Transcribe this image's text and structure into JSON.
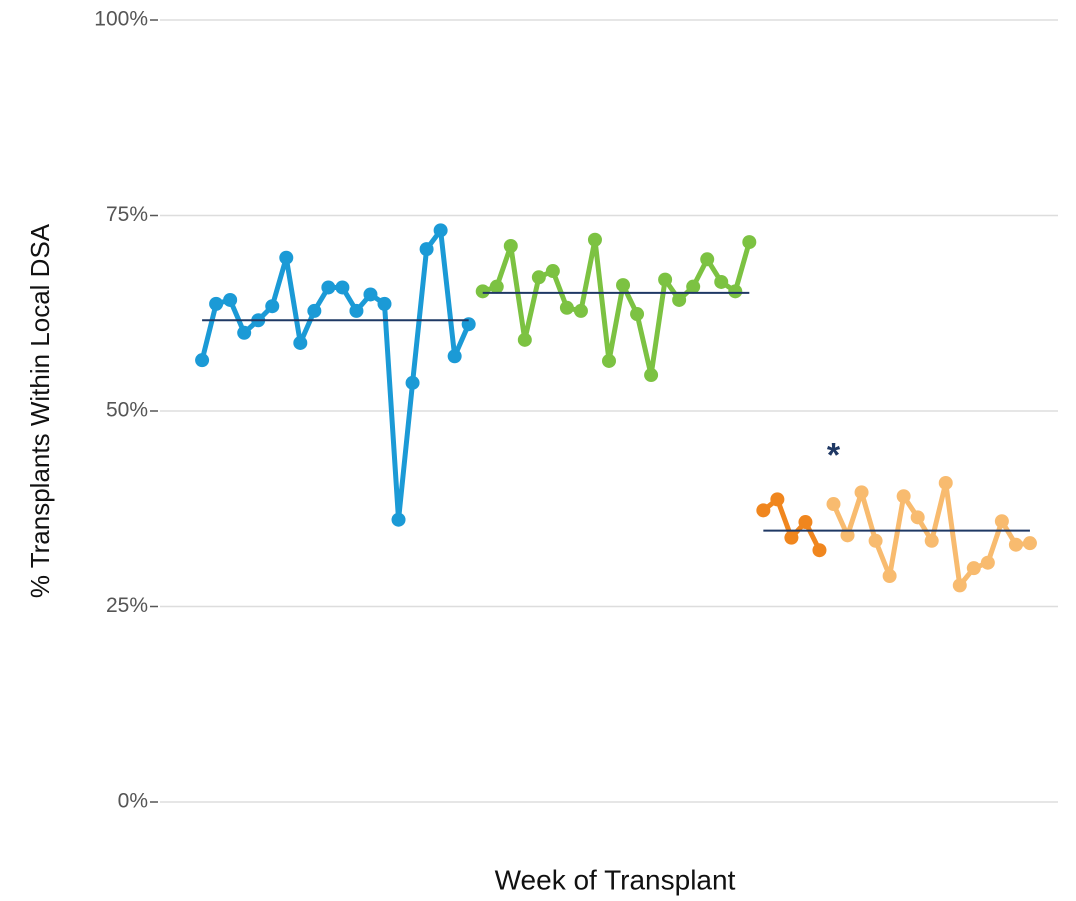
{
  "chart_data": {
    "type": "line",
    "ylabel": "% Transplants Within Local DSA",
    "xlabel": "Week of Transplant",
    "categories": [
      null,
      null,
      null,
      null,
      null,
      null,
      null,
      null,
      null,
      null,
      null,
      null,
      null,
      null,
      null,
      null,
      null,
      null,
      null,
      null,
      null,
      null,
      null,
      null,
      null,
      null,
      null,
      null,
      null,
      null,
      null,
      null,
      null,
      null,
      null,
      null,
      null,
      null,
      null,
      null,
      null,
      null,
      null,
      null,
      null,
      null,
      null,
      null,
      null,
      null,
      null,
      null,
      null,
      null,
      null,
      null,
      null,
      null,
      null,
      null
    ],
    "series": [
      {
        "color": "#1b9ad6",
        "values": [
          56.5,
          63.7,
          64.2,
          60.0,
          61.6,
          63.4,
          69.6,
          58.7,
          62.8,
          65.8,
          65.8,
          62.8,
          64.9,
          63.7,
          36.1,
          53.6,
          70.7,
          73.1,
          57.0,
          61.1,
          null,
          null,
          null,
          null,
          null,
          null,
          null,
          null,
          null,
          null,
          null,
          null,
          null,
          null,
          null,
          null,
          null,
          null,
          null,
          null,
          null,
          null,
          null,
          null,
          null,
          null,
          null,
          null,
          null,
          null,
          null,
          null,
          null,
          null,
          null,
          null,
          null,
          null,
          null,
          null
        ]
      },
      {
        "color": "#7cc242",
        "values": [
          null,
          null,
          null,
          null,
          null,
          null,
          null,
          null,
          null,
          null,
          null,
          null,
          null,
          null,
          null,
          null,
          null,
          null,
          null,
          null,
          65.3,
          65.9,
          71.1,
          59.1,
          67.1,
          67.9,
          63.2,
          62.8,
          71.9,
          56.4,
          66.1,
          62.4,
          54.6,
          66.8,
          64.2,
          65.9,
          69.4,
          66.5,
          65.3,
          71.6,
          null,
          null,
          null,
          null,
          null,
          null,
          null,
          null,
          null,
          null,
          null,
          null,
          null,
          null,
          null,
          null,
          null,
          null,
          null,
          null
        ]
      },
      {
        "color": "#f0861e",
        "values": [
          null,
          null,
          null,
          null,
          null,
          null,
          null,
          null,
          null,
          null,
          null,
          null,
          null,
          null,
          null,
          null,
          null,
          null,
          null,
          null,
          null,
          null,
          null,
          null,
          null,
          null,
          null,
          null,
          null,
          null,
          null,
          null,
          null,
          null,
          null,
          null,
          null,
          null,
          null,
          null,
          37.3,
          38.7,
          33.8,
          35.8,
          32.2,
          null,
          null,
          null,
          null,
          null,
          null,
          null,
          null,
          null,
          null,
          null,
          null,
          null,
          null,
          null
        ]
      },
      {
        "color": "#f8bb6f",
        "values": [
          null,
          null,
          null,
          null,
          null,
          null,
          null,
          null,
          null,
          null,
          null,
          null,
          null,
          null,
          null,
          null,
          null,
          null,
          null,
          null,
          null,
          null,
          null,
          null,
          null,
          null,
          null,
          null,
          null,
          null,
          null,
          null,
          null,
          null,
          null,
          null,
          null,
          null,
          null,
          null,
          null,
          null,
          null,
          null,
          null,
          38.1,
          34.1,
          39.6,
          33.4,
          28.9,
          39.1,
          36.4,
          33.4,
          40.8,
          27.7,
          29.9,
          30.6,
          35.9,
          32.9,
          33.1
        ]
      }
    ],
    "reference_lines": [
      {
        "value": 61.6,
        "x": [
          0,
          19
        ],
        "color": "#1f3864"
      },
      {
        "value": 65.1,
        "x": [
          20,
          39
        ],
        "color": "#1f3864"
      },
      {
        "value": 34.7,
        "x": [
          40,
          59
        ],
        "color": "#1f3864"
      }
    ],
    "annotations": [
      {
        "text": "*",
        "x": 45,
        "y": 44.8,
        "color": "#1f3864"
      }
    ],
    "xlim": [
      -3,
      61
    ],
    "ylim": [
      0,
      100
    ],
    "yticks": [
      {
        "value": 0,
        "label": "0%"
      },
      {
        "value": 25,
        "label": "25%"
      },
      {
        "value": 50,
        "label": "50%"
      },
      {
        "value": 75,
        "label": "75%"
      },
      {
        "value": 100,
        "label": "100%"
      }
    ],
    "grid": true
  }
}
